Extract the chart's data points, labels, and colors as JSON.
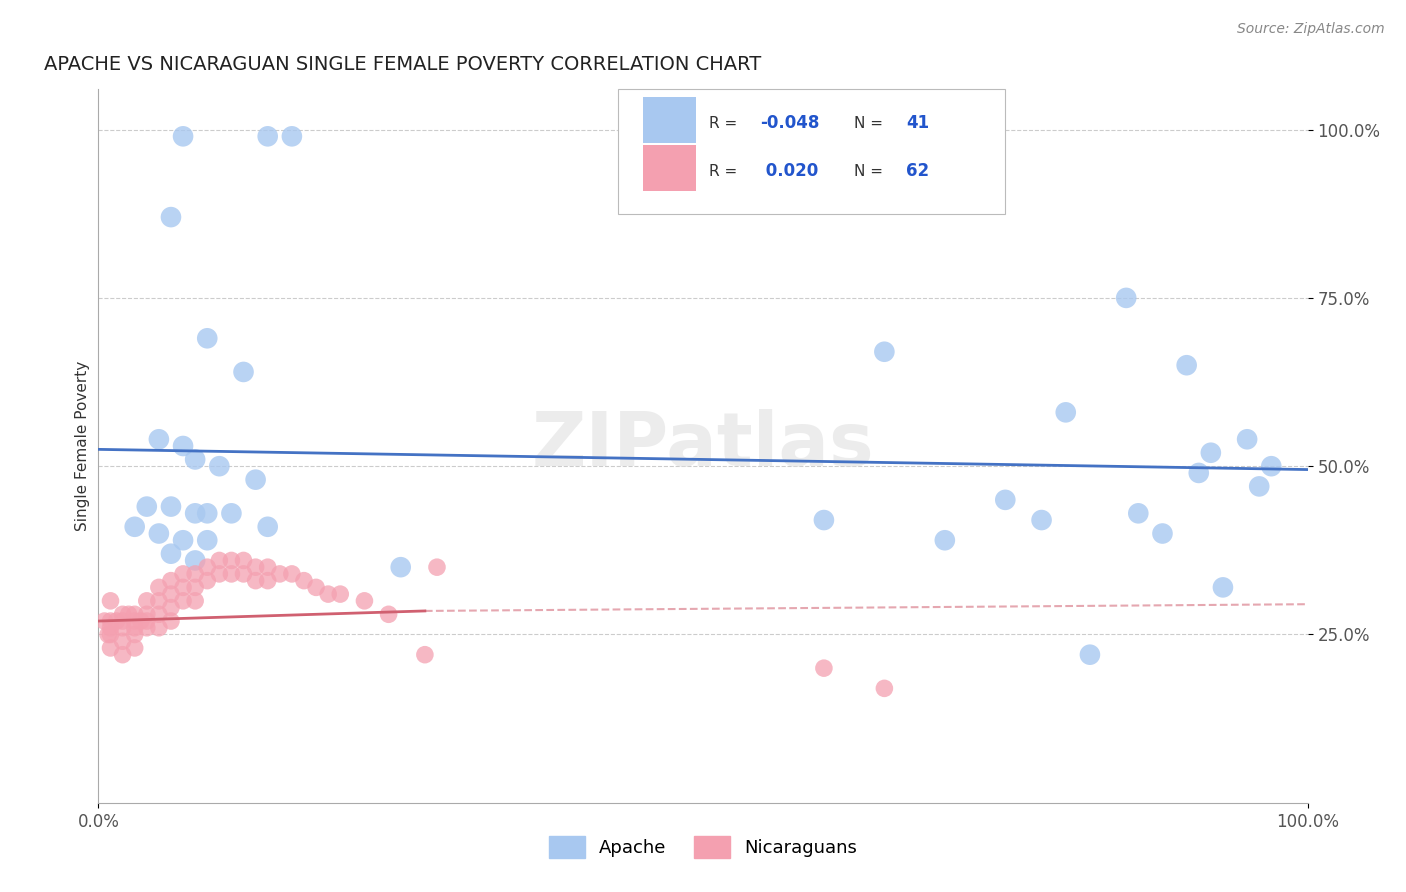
{
  "title": "APACHE VS NICARAGUAN SINGLE FEMALE POVERTY CORRELATION CHART",
  "source_text": "Source: ZipAtlas.com",
  "ylabel": "Single Female Poverty",
  "legend_apache": "Apache",
  "legend_nicaraguan": "Nicaraguans",
  "r_apache": -0.048,
  "n_apache": 41,
  "r_nicaraguan": 0.02,
  "n_nicaraguan": 62,
  "watermark": "ZIPatlas",
  "apache_color": "#a8c8f0",
  "apache_line_color": "#4472c4",
  "nicaraguan_color": "#f4a0b0",
  "nicaraguan_line_color": "#d06070",
  "background_color": "#ffffff",
  "grid_color": "#cccccc",
  "xlim": [
    0.0,
    1.0
  ],
  "ylim": [
    0.0,
    1.06
  ],
  "ytick_vals": [
    0.25,
    0.5,
    0.75,
    1.0
  ],
  "ytick_labels": [
    "25.0%",
    "50.0%",
    "75.0%",
    "100.0%"
  ],
  "xtick_vals": [
    0.0,
    1.0
  ],
  "xtick_labels": [
    "0.0%",
    "100.0%"
  ],
  "apache_x": [
    0.07,
    0.14,
    0.16,
    0.06,
    0.09,
    0.12,
    0.05,
    0.07,
    0.08,
    0.1,
    0.13,
    0.04,
    0.06,
    0.08,
    0.09,
    0.11,
    0.14,
    0.03,
    0.05,
    0.07,
    0.09,
    0.06,
    0.08,
    0.25,
    0.6,
    0.65,
    0.8,
    0.85,
    0.9,
    0.92,
    0.95,
    0.97,
    0.93,
    0.88,
    0.82,
    0.7,
    0.75,
    0.78,
    0.86,
    0.91,
    0.96
  ],
  "apache_y": [
    0.99,
    0.99,
    0.99,
    0.87,
    0.69,
    0.64,
    0.54,
    0.53,
    0.51,
    0.5,
    0.48,
    0.44,
    0.44,
    0.43,
    0.43,
    0.43,
    0.41,
    0.41,
    0.4,
    0.39,
    0.39,
    0.37,
    0.36,
    0.35,
    0.42,
    0.67,
    0.58,
    0.75,
    0.65,
    0.52,
    0.54,
    0.5,
    0.32,
    0.4,
    0.22,
    0.39,
    0.45,
    0.42,
    0.43,
    0.49,
    0.47
  ],
  "nicaraguan_x": [
    0.005,
    0.008,
    0.01,
    0.01,
    0.01,
    0.01,
    0.01,
    0.015,
    0.02,
    0.02,
    0.02,
    0.02,
    0.02,
    0.025,
    0.03,
    0.03,
    0.03,
    0.03,
    0.03,
    0.035,
    0.04,
    0.04,
    0.04,
    0.04,
    0.05,
    0.05,
    0.05,
    0.05,
    0.06,
    0.06,
    0.06,
    0.06,
    0.07,
    0.07,
    0.07,
    0.08,
    0.08,
    0.08,
    0.09,
    0.09,
    0.1,
    0.1,
    0.11,
    0.11,
    0.12,
    0.12,
    0.13,
    0.13,
    0.14,
    0.14,
    0.15,
    0.16,
    0.17,
    0.18,
    0.19,
    0.2,
    0.22,
    0.24,
    0.27,
    0.28,
    0.6,
    0.65
  ],
  "nicaraguan_y": [
    0.27,
    0.25,
    0.3,
    0.27,
    0.26,
    0.25,
    0.23,
    0.27,
    0.28,
    0.27,
    0.26,
    0.24,
    0.22,
    0.28,
    0.28,
    0.27,
    0.26,
    0.25,
    0.23,
    0.27,
    0.3,
    0.28,
    0.27,
    0.26,
    0.32,
    0.3,
    0.28,
    0.26,
    0.33,
    0.31,
    0.29,
    0.27,
    0.34,
    0.32,
    0.3,
    0.34,
    0.32,
    0.3,
    0.35,
    0.33,
    0.36,
    0.34,
    0.36,
    0.34,
    0.36,
    0.34,
    0.35,
    0.33,
    0.35,
    0.33,
    0.34,
    0.34,
    0.33,
    0.32,
    0.31,
    0.31,
    0.3,
    0.28,
    0.22,
    0.35,
    0.2,
    0.17
  ],
  "apache_trend_x0": 0.0,
  "apache_trend_x1": 1.0,
  "apache_trend_y0": 0.525,
  "apache_trend_y1": 0.495,
  "nic_trend_x0": 0.0,
  "nic_trend_x1": 0.27,
  "nic_trend_y0": 0.27,
  "nic_trend_y1": 0.285,
  "nic_trend_dash_x0": 0.27,
  "nic_trend_dash_x1": 1.0,
  "nic_trend_dash_y0": 0.285,
  "nic_trend_dash_y1": 0.295
}
